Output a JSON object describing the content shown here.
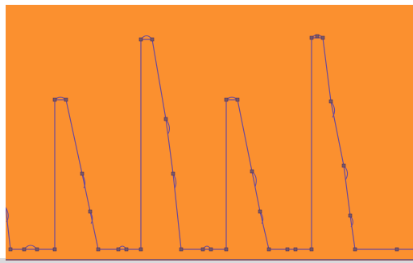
{
  "canvas": {
    "background_color": "#fb902f",
    "path_color": "#6b4a9a",
    "node_color": "#7a5866",
    "baseline_color": "#8a5c6a"
  },
  "path": {
    "node_icon": "square-node-icon",
    "arc_icon": "bezier-handle-icon"
  }
}
